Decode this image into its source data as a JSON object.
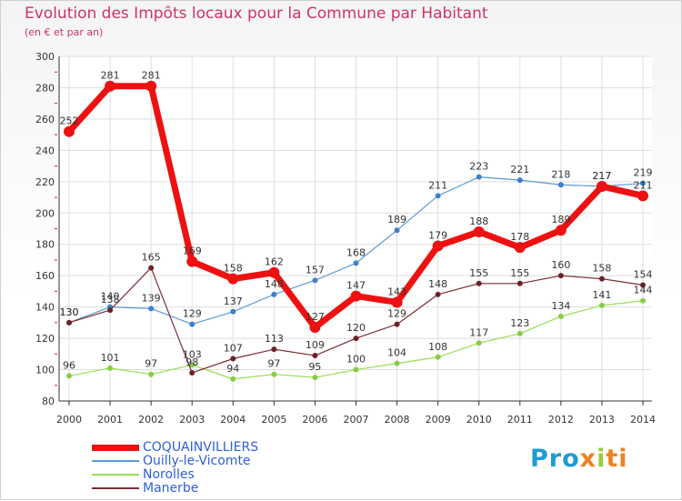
{
  "title": "Evolution des Impôts locaux pour la Commune par Habitant",
  "subtitle": "(en € et par an)",
  "logo": {
    "p1": "Pro",
    "p2": "x",
    "p3": "i",
    "p4": "ti"
  },
  "chart_data": {
    "type": "line",
    "title": "Evolution des Impôts locaux pour la Commune par Habitant",
    "subtitle": "(en € et par an)",
    "xlabel": "",
    "ylabel": "",
    "ylim": [
      80,
      300
    ],
    "yticks": [
      80,
      100,
      120,
      140,
      160,
      180,
      200,
      220,
      240,
      260,
      280,
      300
    ],
    "categories": [
      "2000",
      "2001",
      "2002",
      "2003",
      "2004",
      "2005",
      "2006",
      "2007",
      "2008",
      "2009",
      "2010",
      "2011",
      "2012",
      "2013",
      "2014"
    ],
    "legend_position": "bottom-left",
    "series": [
      {
        "name": "COQUAINVILLIERS",
        "color": "#ee1111",
        "marker": "#ee1111",
        "width": 7,
        "r": 6,
        "values": [
          252,
          281,
          281,
          169,
          158,
          162,
          127,
          147,
          143,
          179,
          188,
          178,
          189,
          217,
          211
        ]
      },
      {
        "name": "Ouilly-le-Vicomte",
        "color": "#5b9bd5",
        "marker": "#3f80c8",
        "width": 1.2,
        "r": 3,
        "values": [
          130,
          140,
          139,
          129,
          137,
          148,
          157,
          168,
          189,
          211,
          223,
          221,
          218,
          217,
          219
        ]
      },
      {
        "name": "Norolles",
        "color": "#99dd55",
        "marker": "#88cc44",
        "width": 1.2,
        "r": 3,
        "values": [
          96,
          101,
          97,
          103,
          94,
          97,
          95,
          100,
          104,
          108,
          117,
          123,
          134,
          141,
          144
        ]
      },
      {
        "name": "Manerbe",
        "color": "#7a2e33",
        "marker": "#6b2227",
        "width": 1.2,
        "r": 3,
        "values": [
          130,
          138,
          165,
          98,
          107,
          113,
          109,
          120,
          129,
          148,
          155,
          155,
          160,
          158,
          154
        ]
      }
    ]
  }
}
